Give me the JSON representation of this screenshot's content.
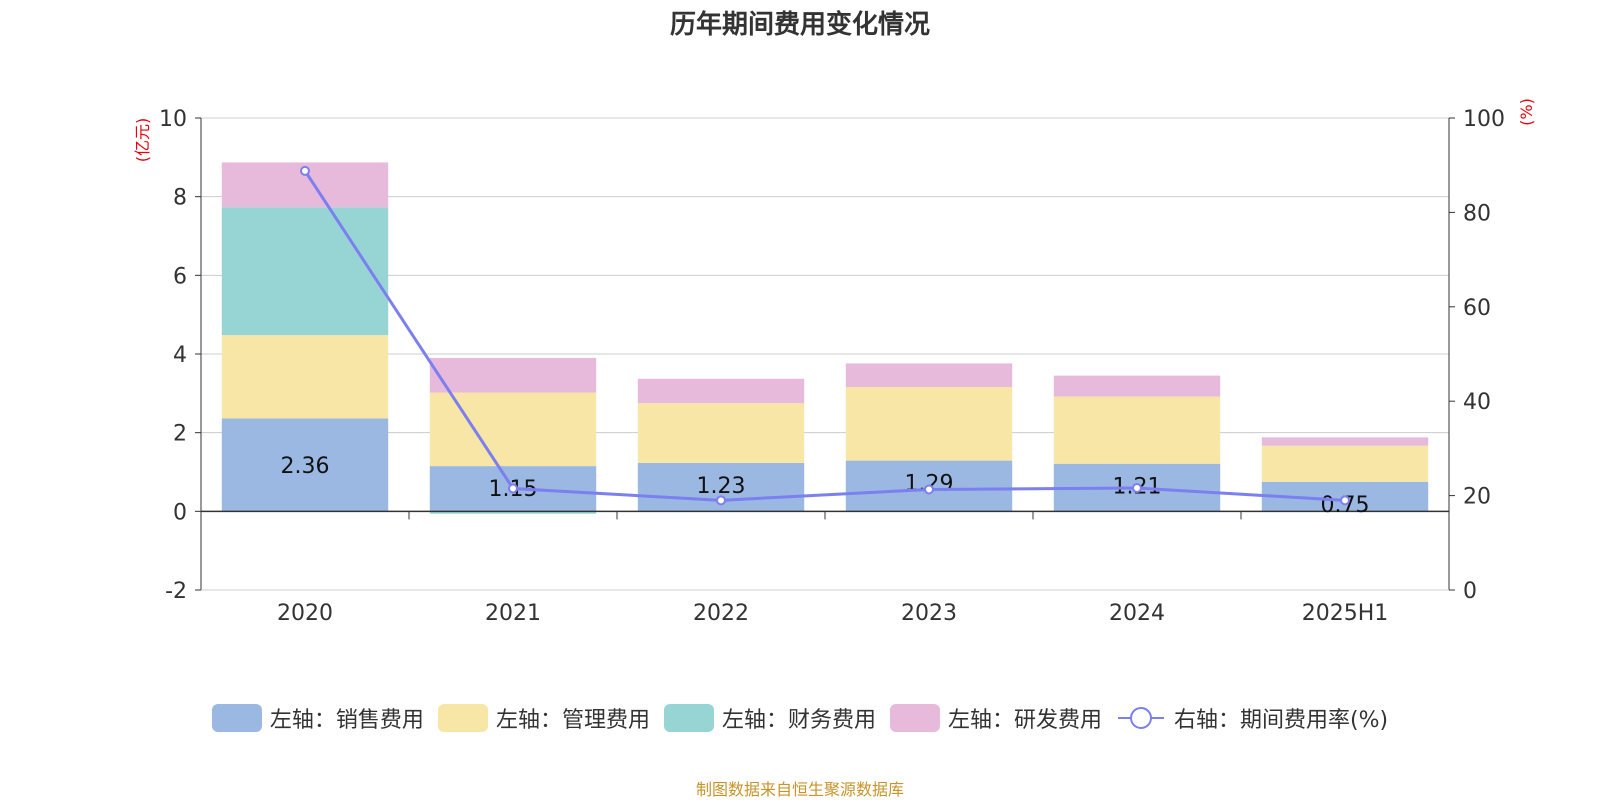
{
  "title": "历年期间费用变化情况",
  "source": "制图数据来自恒生聚源数据库",
  "chart_data": {
    "type": "bar",
    "stacked": true,
    "categories": [
      "2020",
      "2021",
      "2022",
      "2023",
      "2024",
      "2025H1"
    ],
    "left_axis": {
      "unit": "(亿元)",
      "ylim": [
        -2,
        10
      ],
      "ticks": [
        -2,
        0,
        2,
        4,
        6,
        8,
        10
      ]
    },
    "right_axis": {
      "unit": "(%)",
      "ylim": [
        0,
        100
      ],
      "ticks": [
        0,
        20,
        40,
        60,
        80,
        100
      ]
    },
    "series": [
      {
        "name": "左轴：销售费用",
        "axis": "left",
        "color": "#9bb8e2",
        "values": [
          2.36,
          1.15,
          1.23,
          1.29,
          1.21,
          0.75
        ],
        "labels": [
          "2.36",
          "1.15",
          "1.23",
          "1.29",
          "1.21",
          "0.75"
        ]
      },
      {
        "name": "左轴：管理费用",
        "axis": "left",
        "color": "#f7e6a6",
        "values": [
          2.12,
          1.87,
          1.52,
          1.87,
          1.71,
          0.92
        ]
      },
      {
        "name": "左轴：财务费用",
        "axis": "left",
        "color": "#97d5d5",
        "values": [
          3.25,
          -0.06,
          0,
          0,
          0,
          0
        ]
      },
      {
        "name": "左轴：研发费用",
        "axis": "left",
        "color": "#e7b9da",
        "values": [
          1.14,
          0.88,
          0.62,
          0.6,
          0.53,
          0.21
        ]
      },
      {
        "name": "右轴：期间费用率(%)",
        "axis": "right",
        "type": "line",
        "color": "#7b7ff0",
        "values": [
          88.8,
          21.5,
          19.0,
          21.3,
          21.6,
          19.0
        ]
      }
    ],
    "legend_position": "bottom",
    "grid": true
  }
}
